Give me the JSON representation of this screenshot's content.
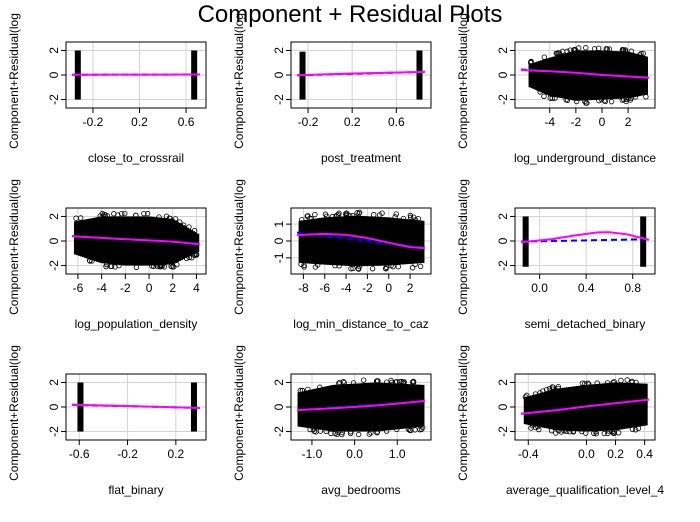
{
  "figure": {
    "title": "Component + Residual Plots",
    "ylabel": "Component+Residual(log"
  },
  "colors": {
    "points": "#000000",
    "grid": "#d3d3d3",
    "fit_line": "#0000ff",
    "smooth_line": "#ff00ff",
    "background": "#ffffff"
  },
  "chart_data": [
    {
      "type": "scatter",
      "variable": "close_to_crossrail",
      "xlabel": "close_to_crossrail",
      "xlim": [
        -0.38,
        0.72
      ],
      "ylim": [
        -2.2,
        2.2
      ],
      "xticks": [
        -0.2,
        0.2,
        0.6
      ],
      "xtick_labels": [
        "-0.2",
        "0.2",
        "0.6"
      ],
      "yticks": [
        -2,
        0,
        2
      ],
      "ytick_labels": [
        "-2",
        "0",
        "2"
      ],
      "point_style": "two_vertical_bands",
      "bands": [
        {
          "x": -0.33,
          "y_range": [
            -2.0,
            2.0
          ]
        },
        {
          "x": 0.67,
          "y_range": [
            -2.0,
            2.0
          ]
        }
      ],
      "fit_line": {
        "x": [
          -0.38,
          0.72
        ],
        "y": [
          0.02,
          0.04
        ]
      },
      "smooth_line": {
        "x": [
          -0.38,
          0.0,
          0.4,
          0.72
        ],
        "y": [
          0.02,
          0.03,
          0.03,
          0.04
        ]
      }
    },
    {
      "type": "scatter",
      "variable": "post_treatment",
      "xlabel": "post_treatment",
      "xlim": [
        -0.3,
        0.86
      ],
      "ylim": [
        -2.2,
        2.2
      ],
      "xticks": [
        -0.2,
        0.2,
        0.6
      ],
      "xtick_labels": [
        "-0.2",
        "0.2",
        "0.6"
      ],
      "yticks": [
        -2,
        0,
        2
      ],
      "ytick_labels": [
        "-2",
        "0",
        "2"
      ],
      "point_style": "two_vertical_bands",
      "bands": [
        {
          "x": -0.25,
          "y_range": [
            -2.0,
            1.9
          ]
        },
        {
          "x": 0.81,
          "y_range": [
            -2.0,
            2.0
          ]
        }
      ],
      "fit_line": {
        "x": [
          -0.3,
          0.86
        ],
        "y": [
          -0.02,
          0.25
        ]
      },
      "smooth_line": {
        "x": [
          -0.3,
          0.2,
          0.86
        ],
        "y": [
          -0.02,
          0.12,
          0.25
        ]
      }
    },
    {
      "type": "scatter",
      "variable": "log_underground_distance",
      "xlabel": "log_underground_distance",
      "xlim": [
        -6.2,
        3.6
      ],
      "ylim": [
        -2.2,
        2.2
      ],
      "xticks": [
        -4,
        -2,
        0,
        2
      ],
      "xtick_labels": [
        "-4",
        "-2",
        "0",
        "2"
      ],
      "yticks": [
        -2,
        0,
        2
      ],
      "ytick_labels": [
        "-2",
        "0",
        "2"
      ],
      "point_style": "dense_cloud",
      "cloud": {
        "x_range": [
          -5.5,
          3.4
        ],
        "y_bottom": [
          [
            -5.5,
            -1.0
          ],
          [
            -4.0,
            -1.7
          ],
          [
            -2.0,
            -2.1
          ],
          [
            0.0,
            -2.0
          ],
          [
            2.0,
            -1.9
          ],
          [
            3.4,
            -1.6
          ]
        ],
        "y_top": [
          [
            -5.5,
            0.9
          ],
          [
            -4.0,
            1.4
          ],
          [
            -2.0,
            2.0
          ],
          [
            0.0,
            2.0
          ],
          [
            2.0,
            1.9
          ],
          [
            3.4,
            1.5
          ]
        ]
      },
      "fit_line": {
        "x": [
          -6.2,
          3.6
        ],
        "y": [
          0.45,
          -0.2
        ]
      },
      "smooth_line": {
        "x": [
          -6.2,
          -4.0,
          -2.0,
          0.0,
          2.0,
          3.6
        ],
        "y": [
          0.4,
          0.3,
          0.18,
          0.0,
          -0.12,
          -0.22
        ]
      }
    },
    {
      "type": "scatter",
      "variable": "log_population_density",
      "xlabel": "log_population_density",
      "xlim": [
        -6.5,
        4.3
      ],
      "ylim": [
        -2.2,
        2.2
      ],
      "xticks": [
        -6,
        -4,
        -2,
        0,
        2,
        4
      ],
      "xtick_labels": [
        "-6",
        "-4",
        "-2",
        "0",
        "2",
        "4"
      ],
      "yticks": [
        -2,
        0,
        2
      ],
      "ytick_labels": [
        "-2",
        "0",
        "2"
      ],
      "point_style": "dense_cloud",
      "cloud": {
        "x_range": [
          -6.2,
          4.1
        ],
        "y_bottom": [
          [
            -6.2,
            -1.1
          ],
          [
            -4.0,
            -1.8
          ],
          [
            -2.0,
            -2.0
          ],
          [
            0.0,
            -2.0
          ],
          [
            2.0,
            -1.9
          ],
          [
            4.1,
            -0.9
          ]
        ],
        "y_top": [
          [
            -6.2,
            1.6
          ],
          [
            -4.0,
            2.0
          ],
          [
            -2.0,
            2.0
          ],
          [
            0.0,
            2.0
          ],
          [
            2.0,
            1.8
          ],
          [
            4.1,
            0.6
          ]
        ]
      },
      "fit_line": {
        "x": [
          -6.5,
          4.3
        ],
        "y": [
          0.4,
          -0.2
        ]
      },
      "smooth_line": {
        "x": [
          -6.5,
          -4.0,
          -2.0,
          0.0,
          2.0,
          4.3
        ],
        "y": [
          0.38,
          0.25,
          0.15,
          0.05,
          -0.05,
          -0.28
        ]
      }
    },
    {
      "type": "scatter",
      "variable": "log_min_distance_to_caz",
      "xlabel": "log_min_distance_to_caz",
      "xlim": [
        -8.6,
        3.4
      ],
      "ylim": [
        -1.6,
        1.6
      ],
      "xticks": [
        -8,
        -6,
        -4,
        -2,
        0,
        2
      ],
      "xtick_labels": [
        "-8",
        "-6",
        "-4",
        "-2",
        "0",
        "2"
      ],
      "yticks": [
        -1,
        0,
        1
      ],
      "ytick_labels": [
        "-1",
        "0",
        "1"
      ],
      "point_style": "dense_cloud",
      "cloud": {
        "x_range": [
          -8.3,
          3.2
        ],
        "y_bottom": [
          [
            -8.3,
            -1.3
          ],
          [
            -6.0,
            -1.4
          ],
          [
            -3.0,
            -1.5
          ],
          [
            0.0,
            -1.45
          ],
          [
            3.2,
            -1.3
          ]
        ],
        "y_top": [
          [
            -8.3,
            1.2
          ],
          [
            -6.0,
            1.4
          ],
          [
            -3.0,
            1.5
          ],
          [
            0.0,
            1.4
          ],
          [
            3.2,
            1.2
          ]
        ]
      },
      "fit_line": {
        "x": [
          -8.6,
          3.4
        ],
        "y": [
          0.5,
          -0.4
        ]
      },
      "smooth_line": {
        "x": [
          -8.6,
          -6.0,
          -4.0,
          -2.0,
          0.0,
          2.0,
          3.4
        ],
        "y": [
          0.35,
          0.42,
          0.36,
          0.18,
          -0.1,
          -0.36,
          -0.42
        ]
      }
    },
    {
      "type": "scatter",
      "variable": "semi_detached_binary",
      "xlabel": "semi_detached_binary",
      "xlim": [
        -0.16,
        0.94
      ],
      "ylim": [
        -2.2,
        2.2
      ],
      "xticks": [
        0.0,
        0.4,
        0.8
      ],
      "xtick_labels": [
        "0.0",
        "0.4",
        "0.8"
      ],
      "yticks": [
        -2,
        0,
        2
      ],
      "ytick_labels": [
        "-2",
        "0",
        "2"
      ],
      "point_style": "two_vertical_bands",
      "bands": [
        {
          "x": -0.12,
          "y_range": [
            -2.1,
            2.0
          ]
        },
        {
          "x": 0.89,
          "y_range": [
            -2.1,
            2.0
          ]
        }
      ],
      "fit_line": {
        "x": [
          -0.16,
          0.94
        ],
        "y": [
          -0.05,
          0.15
        ]
      },
      "smooth_line": {
        "x": [
          -0.16,
          0.1,
          0.3,
          0.5,
          0.6,
          0.75,
          0.94
        ],
        "y": [
          -0.1,
          0.15,
          0.45,
          0.7,
          0.72,
          0.55,
          0.1
        ]
      }
    },
    {
      "type": "scatter",
      "variable": "flat_binary",
      "xlabel": "flat_binary",
      "xlim": [
        -0.66,
        0.4
      ],
      "ylim": [
        -2.2,
        2.2
      ],
      "xticks": [
        -0.6,
        -0.2,
        0.2
      ],
      "xtick_labels": [
        "-0.6",
        "-0.2",
        "0.2"
      ],
      "yticks": [
        -2,
        0,
        2
      ],
      "ytick_labels": [
        "-2",
        "0",
        "2"
      ],
      "point_style": "two_vertical_bands",
      "bands": [
        {
          "x": -0.59,
          "y_range": [
            -2.0,
            2.0
          ]
        },
        {
          "x": 0.35,
          "y_range": [
            -2.0,
            2.0
          ]
        }
      ],
      "fit_line": {
        "x": [
          -0.66,
          0.4
        ],
        "y": [
          0.18,
          -0.08
        ]
      },
      "smooth_line": {
        "x": [
          -0.66,
          -0.2,
          0.4
        ],
        "y": [
          0.18,
          0.08,
          -0.08
        ]
      }
    },
    {
      "type": "scatter",
      "variable": "avg_bedrooms",
      "xlabel": "avg_bedrooms",
      "xlim": [
        -1.35,
        1.65
      ],
      "ylim": [
        -2.2,
        2.2
      ],
      "xticks": [
        -1.0,
        0.0,
        1.0
      ],
      "xtick_labels": [
        "-1.0",
        "0.0",
        "1.0"
      ],
      "yticks": [
        -2,
        0,
        2
      ],
      "ytick_labels": [
        "-2",
        "0",
        "2"
      ],
      "point_style": "dense_cloud",
      "cloud": {
        "x_range": [
          -1.3,
          1.6
        ],
        "y_bottom": [
          [
            -1.3,
            -1.6
          ],
          [
            -0.5,
            -2.0
          ],
          [
            0.5,
            -2.0
          ],
          [
            1.6,
            -1.6
          ]
        ],
        "y_top": [
          [
            -1.3,
            1.2
          ],
          [
            -0.5,
            1.8
          ],
          [
            0.5,
            2.0
          ],
          [
            1.6,
            1.8
          ]
        ]
      },
      "fit_line": {
        "x": [
          -1.35,
          1.65
        ],
        "y": [
          -0.25,
          0.45
        ]
      },
      "smooth_line": {
        "x": [
          -1.35,
          -0.5,
          0.0,
          0.5,
          1.0,
          1.65
        ],
        "y": [
          -0.25,
          -0.1,
          0.0,
          0.12,
          0.28,
          0.5
        ]
      }
    },
    {
      "type": "scatter",
      "variable": "average_qualification_level_4",
      "xlabel": "average_qualification_level_4",
      "xlim": [
        -0.45,
        0.43
      ],
      "ylim": [
        -2.2,
        2.2
      ],
      "xticks": [
        -0.4,
        0.0,
        0.2,
        0.4
      ],
      "xtick_labels": [
        "-0.4",
        "0.0",
        "0.2",
        "0.4"
      ],
      "yticks": [
        -2,
        0,
        2
      ],
      "ytick_labels": [
        "-2",
        "0",
        "2"
      ],
      "point_style": "dense_cloud",
      "cloud": {
        "x_range": [
          -0.42,
          0.41
        ],
        "y_bottom": [
          [
            -0.42,
            -1.4
          ],
          [
            -0.2,
            -1.9
          ],
          [
            0.0,
            -2.0
          ],
          [
            0.2,
            -1.9
          ],
          [
            0.41,
            -1.5
          ]
        ],
        "y_top": [
          [
            -0.42,
            0.8
          ],
          [
            -0.2,
            1.5
          ],
          [
            0.0,
            1.8
          ],
          [
            0.2,
            2.0
          ],
          [
            0.41,
            1.9
          ]
        ]
      },
      "fit_line": {
        "x": [
          -0.45,
          0.43
        ],
        "y": [
          -0.55,
          0.6
        ]
      },
      "smooth_line": {
        "x": [
          -0.45,
          -0.2,
          0.0,
          0.2,
          0.43
        ],
        "y": [
          -0.55,
          -0.25,
          0.05,
          0.3,
          0.6
        ]
      }
    }
  ]
}
